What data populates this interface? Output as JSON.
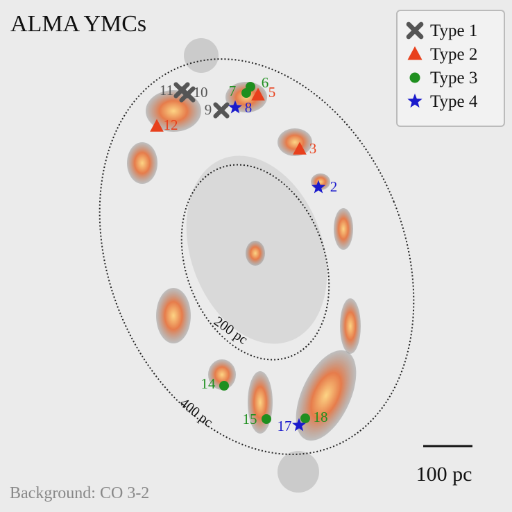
{
  "header": {
    "title": "ALMA YMCs"
  },
  "legend": [
    {
      "name": "Type 1",
      "color": "#555555",
      "sources": [
        "9",
        "10",
        "11"
      ]
    },
    {
      "name": "Type 2",
      "color": "#e8401c",
      "sources": [
        "3",
        "5",
        "12"
      ]
    },
    {
      "name": "Type 3",
      "color": "#1f8f1f",
      "sources": [
        "6",
        "7",
        "14",
        "15",
        "18"
      ]
    },
    {
      "name": "Type 4",
      "color": "#1a1acc",
      "sources": [
        "2",
        "8",
        "17"
      ]
    }
  ],
  "annotations": {
    "inner": "200 pc",
    "outer": "400 pc",
    "scale": "100 pc",
    "background": "Background: CO 3-2"
  }
}
